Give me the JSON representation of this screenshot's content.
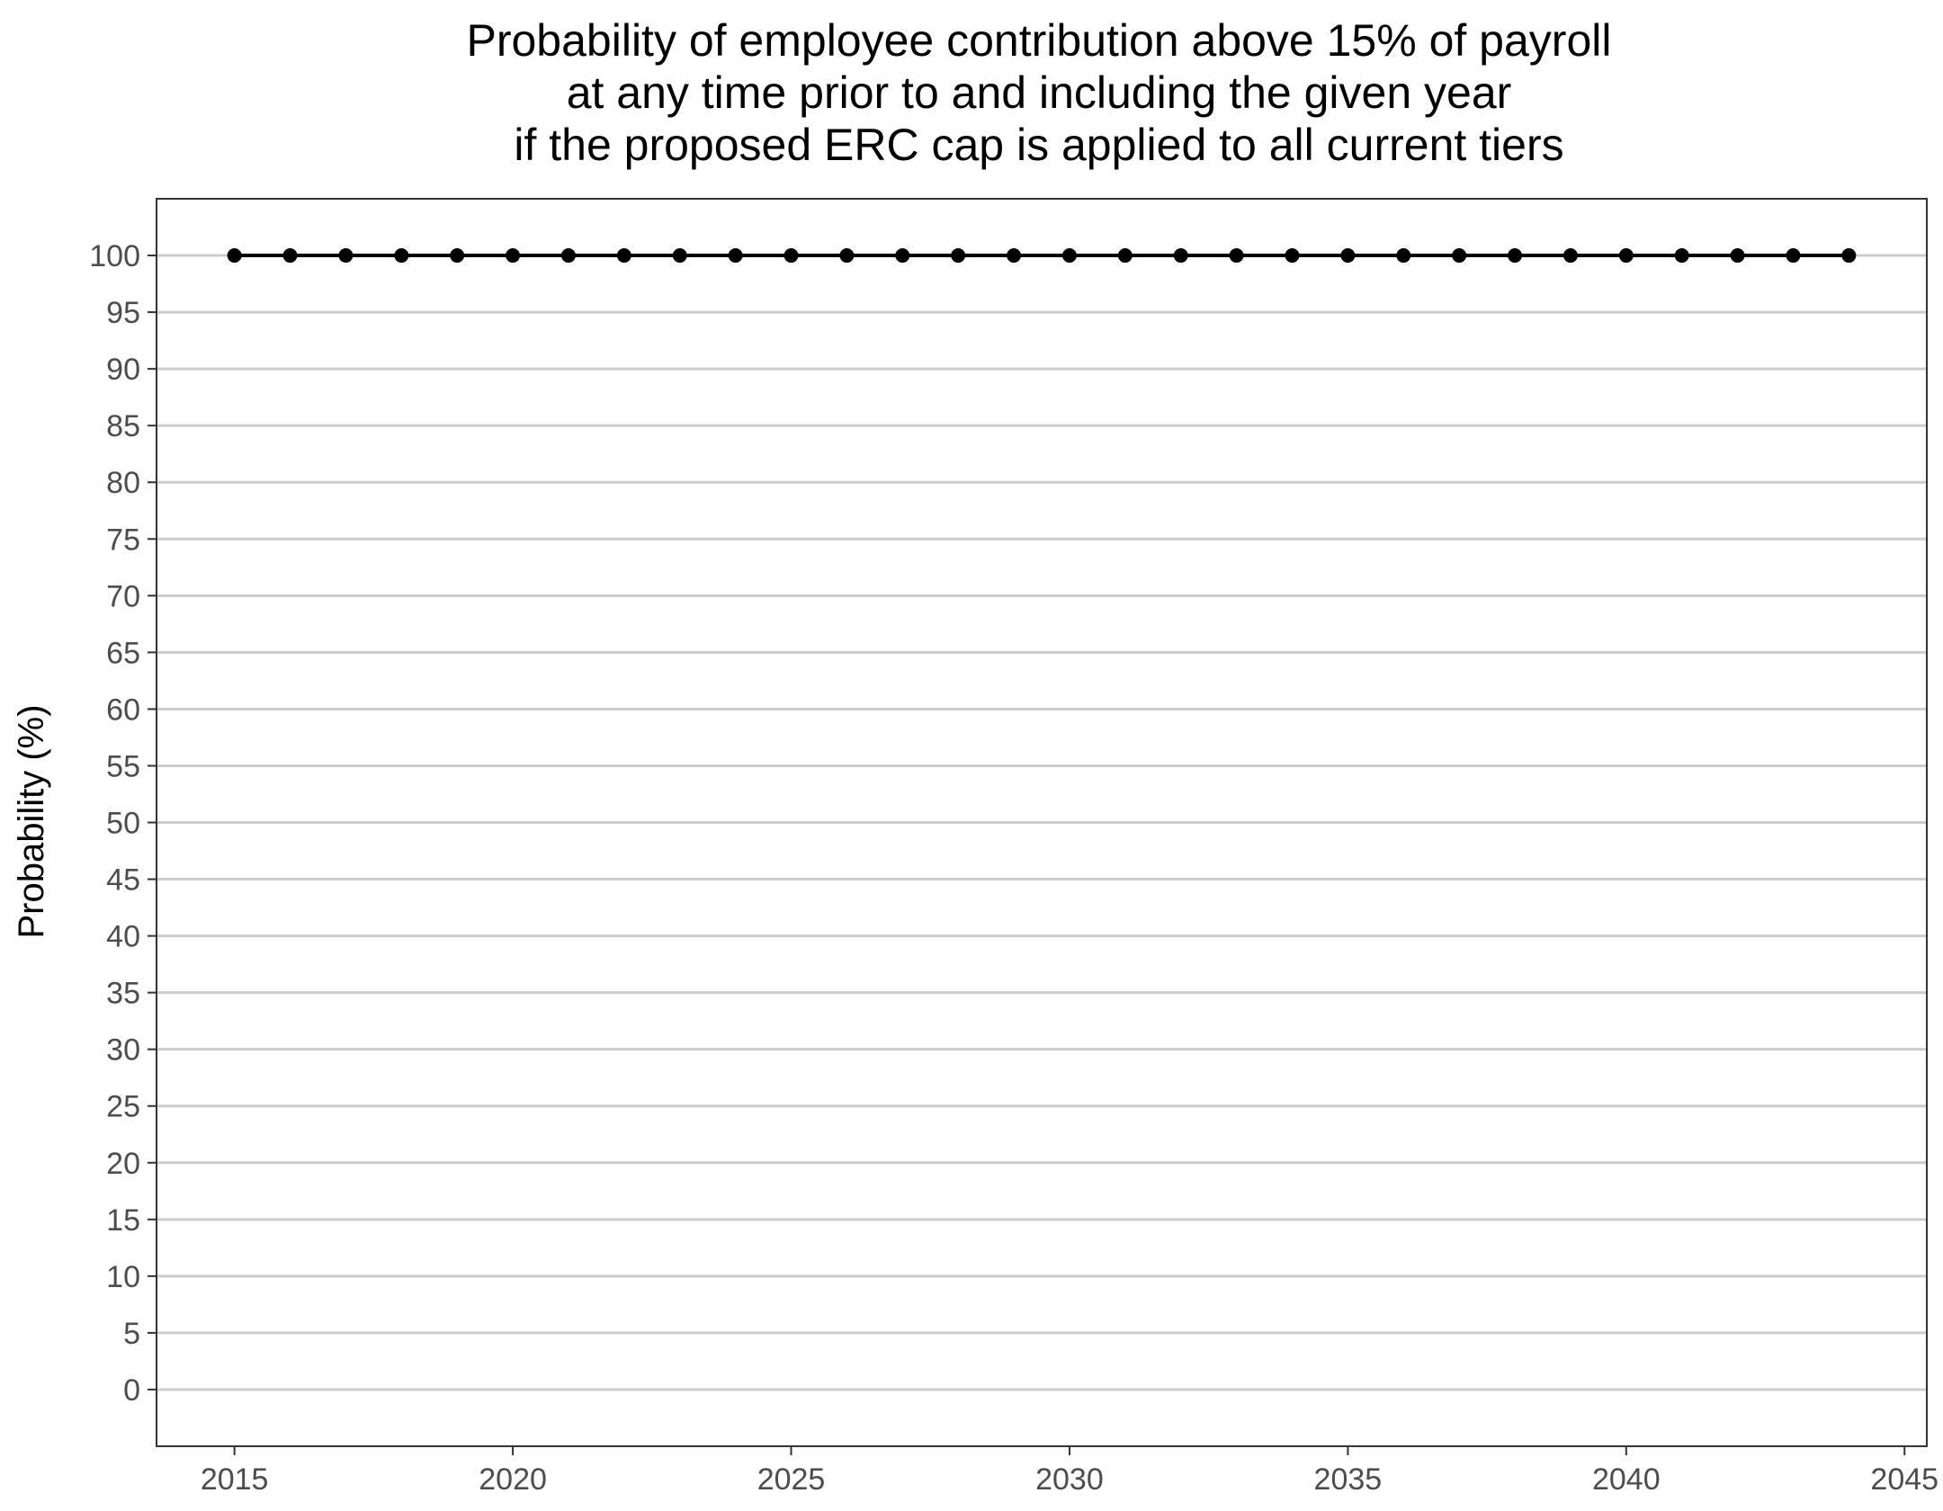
{
  "chart_data": {
    "type": "line",
    "title": [
      "Probability of employee contribution above 15% of payroll",
      "at any time prior to and including the given year",
      "if the proposed ERC cap is applied to all current tiers"
    ],
    "xlabel": "",
    "ylabel": "Probability (%)",
    "xlim": [
      2013.6,
      2045.4
    ],
    "ylim": [
      -5,
      105
    ],
    "x_ticks": [
      2015,
      2020,
      2025,
      2030,
      2035,
      2040,
      2045
    ],
    "y_ticks": [
      0,
      5,
      10,
      15,
      20,
      25,
      30,
      35,
      40,
      45,
      50,
      55,
      60,
      65,
      70,
      75,
      80,
      85,
      90,
      95,
      100
    ],
    "grid": "horizontal major",
    "legend": "none",
    "series": [
      {
        "color": "#000000",
        "x": [
          2015,
          2016,
          2017,
          2018,
          2019,
          2020,
          2021,
          2022,
          2023,
          2024,
          2025,
          2026,
          2027,
          2028,
          2029,
          2030,
          2031,
          2032,
          2033,
          2034,
          2035,
          2036,
          2037,
          2038,
          2039,
          2040,
          2041,
          2042,
          2043,
          2044
        ],
        "values": [
          100,
          100,
          100,
          100,
          100,
          100,
          100,
          100,
          100,
          100,
          100,
          100,
          100,
          100,
          100,
          100,
          100,
          100,
          100,
          100,
          100,
          100,
          100,
          100,
          100,
          100,
          100,
          100,
          100,
          100
        ]
      }
    ],
    "colors": {
      "gridline": "#cccccc",
      "panel_border": "#333333",
      "tick_label": "#4d4d4d"
    }
  }
}
